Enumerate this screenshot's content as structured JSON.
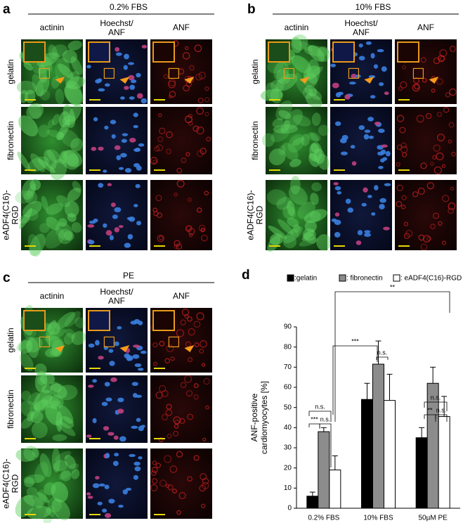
{
  "panels": [
    {
      "label": "a",
      "title": "0.2% FBS",
      "columns": {
        "green": "actinin",
        "merge_top": "Hoechst/",
        "merge_bottom": "ANF",
        "red": "ANF"
      },
      "rows": [
        [
          "gelatin"
        ],
        [
          "fibronectin"
        ],
        [
          "eADF4(C16)-",
          "RGD"
        ]
      ]
    },
    {
      "label": "b",
      "title": "10% FBS",
      "columns": {
        "green": "actinin",
        "merge_top": "Hoechst/",
        "merge_bottom": "ANF",
        "red": "ANF"
      },
      "rows": [
        [
          "gelatin"
        ],
        [
          "fibronectin"
        ],
        [
          "eADF4(C16)-",
          "RGD"
        ]
      ]
    },
    {
      "label": "c",
      "title": "PE",
      "columns": {
        "green": "actinin",
        "merge_top": "Hoechst/",
        "merge_bottom": "ANF",
        "red": "ANF"
      },
      "rows": [
        [
          "gelatin"
        ],
        [
          "fibronectin"
        ],
        [
          "eADF4(C16)-",
          "RGD"
        ]
      ]
    }
  ],
  "chart_data": {
    "type": "bar",
    "label": "d",
    "categories": [
      "0.2% FBS",
      "10% FBS",
      "50µM PE"
    ],
    "series": [
      {
        "name": ":gelatin",
        "color": "#000000",
        "values": [
          6,
          54,
          35
        ],
        "errors": [
          2,
          8,
          5
        ]
      },
      {
        "name": ": fibronectin",
        "color": "#8c8c8c",
        "values": [
          38,
          71.5,
          62
        ],
        "errors": [
          2,
          11.5,
          8
        ]
      },
      {
        "name": ": eADF4(C16)-RGD",
        "color": "#ffffff",
        "values": [
          19,
          53.5,
          45.5
        ],
        "errors": [
          7,
          13,
          10
        ]
      }
    ],
    "y_label": [
      "ANF-positive",
      "cardiomyocytes [%]"
    ],
    "ylim": [
      0,
      90
    ],
    "yticks": [
      0,
      10,
      20,
      30,
      40,
      50,
      60,
      70,
      80,
      90
    ],
    "annotations": [
      "n.s.",
      "***",
      "n.s.",
      "***",
      "n.s.",
      "**",
      "n.s.",
      "**",
      "n.s."
    ]
  }
}
